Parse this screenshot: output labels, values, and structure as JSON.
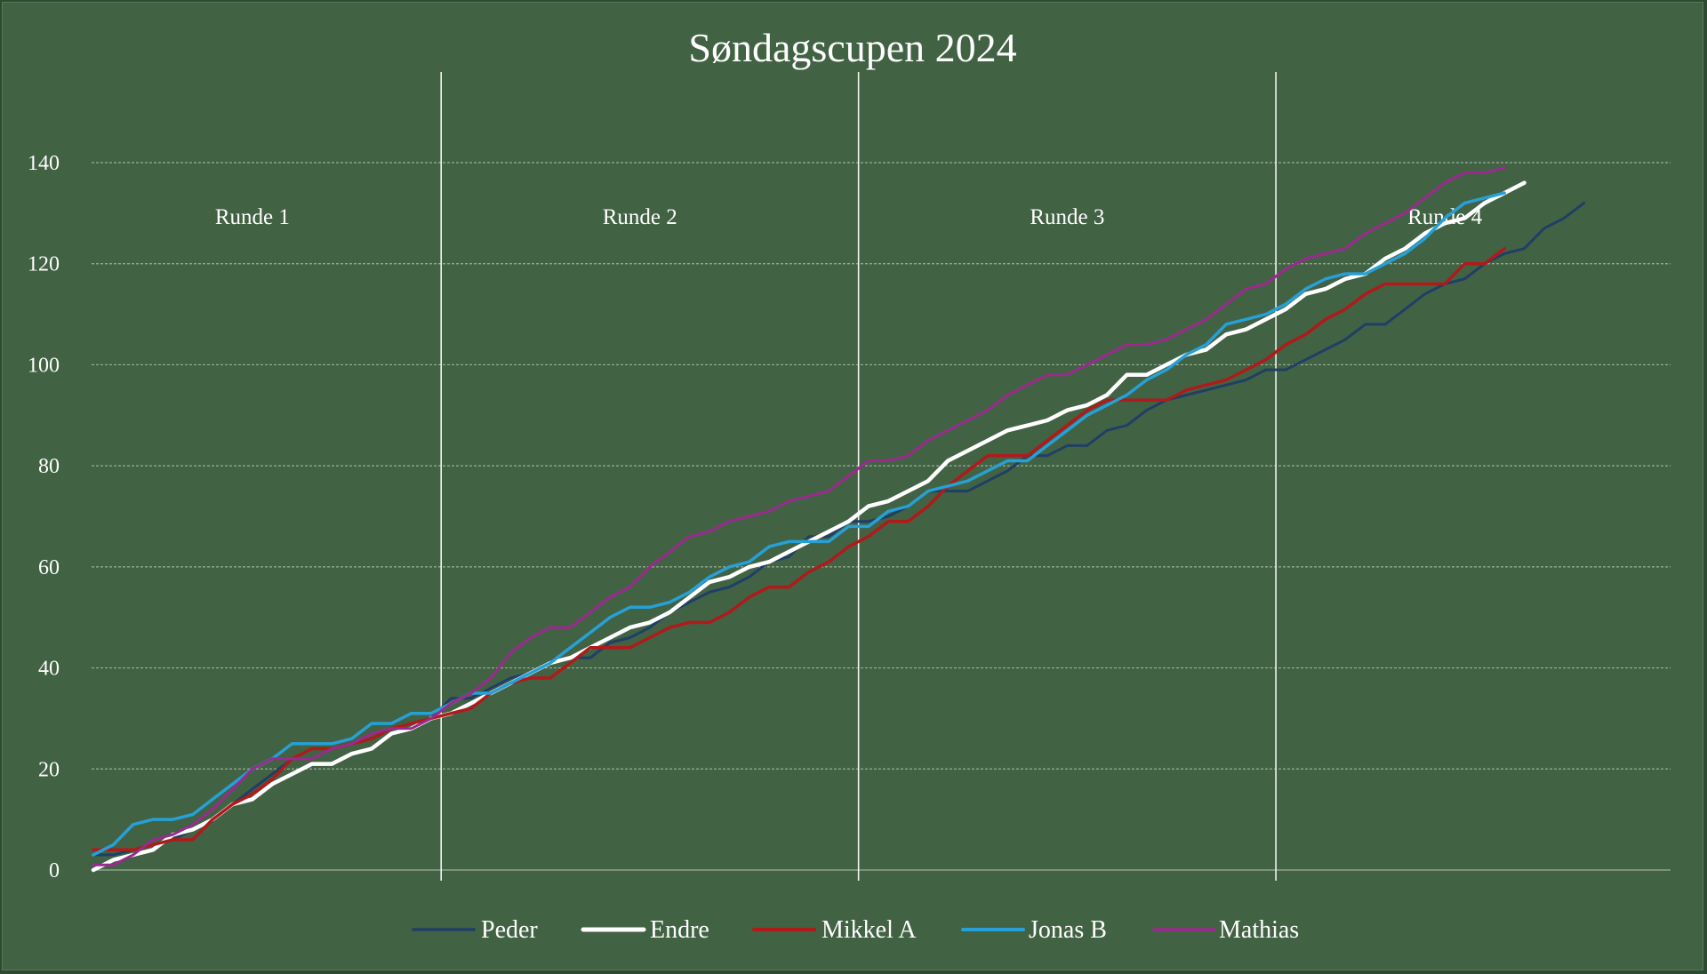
{
  "chart_data": {
    "type": "line",
    "title": "Søndagscupen 2024",
    "ylim": [
      0,
      140
    ],
    "yticks": [
      0,
      20,
      40,
      60,
      80,
      100,
      120,
      140
    ],
    "grid": "horizontal",
    "legend_position": "bottom",
    "x_count": 80,
    "round_dividers_after_x": [
      17,
      38,
      59
    ],
    "rounds": [
      {
        "label": "Runde 1",
        "x": 8
      },
      {
        "label": "Runde 2",
        "x": 27.5
      },
      {
        "label": "Runde 3",
        "x": 49
      },
      {
        "label": "Runde 4",
        "x": 68
      }
    ],
    "series": [
      {
        "name": "Peder",
        "color": "#1f3f66",
        "width": 3,
        "values": [
          3,
          3,
          4,
          5,
          6,
          8,
          10,
          13,
          16,
          19,
          22,
          24,
          24,
          25,
          26,
          28,
          29,
          30,
          34,
          34,
          36,
          38,
          39,
          41,
          42,
          42,
          45,
          46,
          48,
          51,
          53,
          55,
          56,
          58,
          61,
          62,
          66,
          66,
          69,
          69,
          70,
          72,
          75,
          75,
          75,
          77,
          79,
          82,
          82,
          84,
          84,
          87,
          88,
          91,
          93,
          94,
          95,
          96,
          97,
          99,
          99,
          101,
          103,
          105,
          108,
          108,
          111,
          114,
          116,
          117,
          120,
          122,
          123,
          127,
          129,
          132
        ]
      },
      {
        "name": "Endre",
        "color": "#ffffff",
        "width": 4.5,
        "values": [
          0,
          2,
          3,
          4,
          7,
          8,
          10,
          13,
          14,
          17,
          19,
          21,
          21,
          23,
          24,
          27,
          28,
          30,
          31,
          33,
          35,
          37,
          39,
          41,
          42,
          44,
          46,
          48,
          49,
          51,
          54,
          57,
          58,
          60,
          61,
          63,
          65,
          67,
          69,
          72,
          73,
          75,
          77,
          81,
          83,
          85,
          87,
          88,
          89,
          91,
          92,
          94,
          98,
          98,
          100,
          102,
          103,
          106,
          107,
          109,
          111,
          114,
          115,
          117,
          118,
          121,
          123,
          126,
          128,
          129,
          132,
          134,
          136
        ]
      },
      {
        "name": "Mikkel A",
        "color": "#b01a1a",
        "width": 3.5,
        "values": [
          4,
          4,
          4,
          5,
          6,
          6,
          10,
          13,
          15,
          18,
          22,
          24,
          24,
          25,
          26,
          28,
          29,
          30,
          31,
          32,
          35,
          37,
          38,
          38,
          41,
          44,
          44,
          44,
          46,
          48,
          49,
          49,
          51,
          54,
          56,
          56,
          59,
          61,
          64,
          66,
          69,
          69,
          72,
          76,
          79,
          82,
          82,
          82,
          85,
          88,
          91,
          93,
          93,
          93,
          93,
          95,
          96,
          97,
          99,
          101,
          104,
          106,
          109,
          111,
          114,
          116,
          116,
          116,
          116,
          120,
          120,
          123
        ]
      },
      {
        "name": "Jonas B",
        "color": "#26a0d6",
        "width": 3.5,
        "values": [
          3,
          5,
          9,
          10,
          10,
          11,
          14,
          17,
          20,
          22,
          25,
          25,
          25,
          26,
          29,
          29,
          31,
          31,
          33,
          35,
          35,
          37,
          39,
          41,
          44,
          47,
          50,
          52,
          52,
          53,
          55,
          58,
          60,
          61,
          64,
          65,
          65,
          65,
          68,
          68,
          71,
          72,
          75,
          76,
          77,
          79,
          81,
          81,
          84,
          87,
          90,
          92,
          94,
          97,
          99,
          102,
          104,
          108,
          109,
          110,
          112,
          115,
          117,
          118,
          118,
          120,
          122,
          125,
          129,
          132,
          133,
          134
        ]
      },
      {
        "name": "Mathias",
        "color": "#9b2a8f",
        "width": 3,
        "values": [
          1,
          1,
          3,
          6,
          7,
          9,
          12,
          16,
          20,
          22,
          22,
          22,
          24,
          25,
          27,
          28,
          28,
          30,
          33,
          35,
          38,
          43,
          46,
          48,
          48,
          51,
          54,
          56,
          60,
          63,
          66,
          67,
          69,
          70,
          71,
          73,
          74,
          75,
          78,
          81,
          81,
          82,
          85,
          87,
          89,
          91,
          94,
          96,
          98,
          98,
          100,
          102,
          104,
          104,
          105,
          107,
          109,
          112,
          115,
          116,
          119,
          121,
          122,
          123,
          126,
          128,
          130,
          133,
          136,
          138,
          138,
          139
        ]
      }
    ]
  }
}
